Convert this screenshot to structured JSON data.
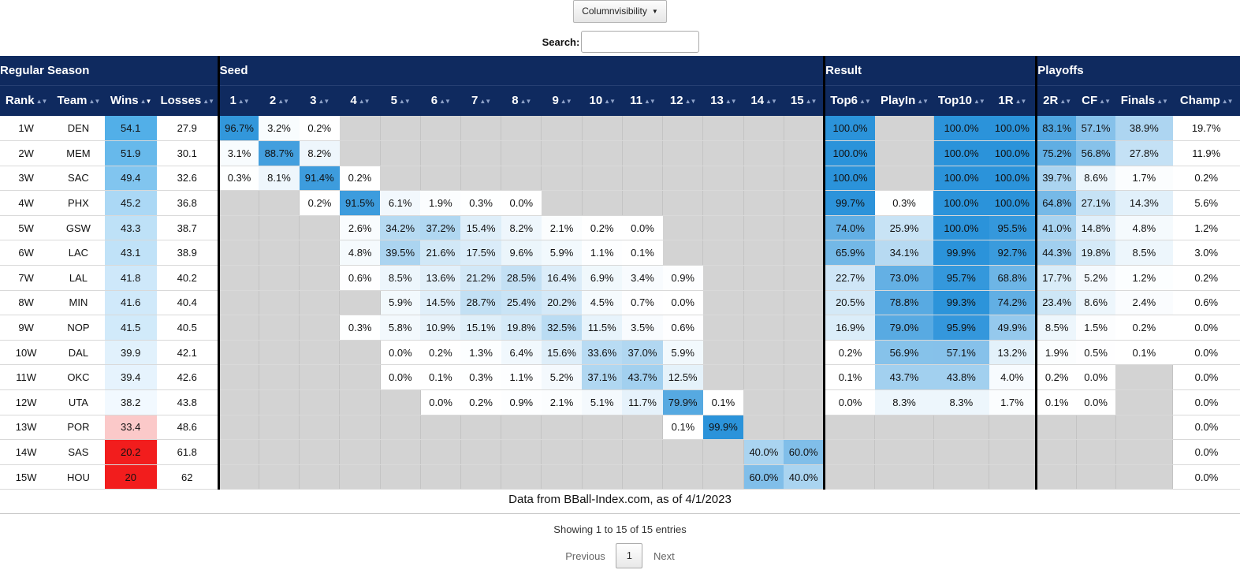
{
  "colvis": {
    "label": "Columnvisibility",
    "caret": "▼"
  },
  "search": {
    "label": "Search:",
    "value": ""
  },
  "groups": [
    "Regular Season",
    "Seed",
    "Result",
    "Playoffs"
  ],
  "columns": [
    "Rank",
    "Team",
    "Wins",
    "Losses",
    "1",
    "2",
    "3",
    "4",
    "5",
    "6",
    "7",
    "8",
    "9",
    "10",
    "11",
    "12",
    "13",
    "14",
    "15",
    "Top6",
    "PlayIn",
    "Top10",
    "1R",
    "2R",
    "CF",
    "Finals",
    "Champ"
  ],
  "rows": [
    [
      "1W",
      "DEN",
      "54.1",
      "27.9",
      "96.7%",
      "3.2%",
      "0.2%",
      "",
      "",
      "",
      "",
      "",
      "",
      "",
      "",
      "",
      "",
      "",
      "",
      "100.0%",
      "",
      "100.0%",
      "100.0%",
      "83.1%",
      "57.1%",
      "38.9%",
      "19.7%"
    ],
    [
      "2W",
      "MEM",
      "51.9",
      "30.1",
      "3.1%",
      "88.7%",
      "8.2%",
      "",
      "",
      "",
      "",
      "",
      "",
      "",
      "",
      "",
      "",
      "",
      "",
      "100.0%",
      "",
      "100.0%",
      "100.0%",
      "75.2%",
      "56.8%",
      "27.8%",
      "11.9%"
    ],
    [
      "3W",
      "SAC",
      "49.4",
      "32.6",
      "0.3%",
      "8.1%",
      "91.4%",
      "0.2%",
      "",
      "",
      "",
      "",
      "",
      "",
      "",
      "",
      "",
      "",
      "",
      "100.0%",
      "",
      "100.0%",
      "100.0%",
      "39.7%",
      "8.6%",
      "1.7%",
      "0.2%"
    ],
    [
      "4W",
      "PHX",
      "45.2",
      "36.8",
      "",
      "",
      "0.2%",
      "91.5%",
      "6.1%",
      "1.9%",
      "0.3%",
      "0.0%",
      "",
      "",
      "",
      "",
      "",
      "",
      "",
      "99.7%",
      "0.3%",
      "100.0%",
      "100.0%",
      "64.8%",
      "27.1%",
      "14.3%",
      "5.6%"
    ],
    [
      "5W",
      "GSW",
      "43.3",
      "38.7",
      "",
      "",
      "",
      "2.6%",
      "34.2%",
      "37.2%",
      "15.4%",
      "8.2%",
      "2.1%",
      "0.2%",
      "0.0%",
      "",
      "",
      "",
      "",
      "74.0%",
      "25.9%",
      "100.0%",
      "95.5%",
      "41.0%",
      "14.8%",
      "4.8%",
      "1.2%"
    ],
    [
      "6W",
      "LAC",
      "43.1",
      "38.9",
      "",
      "",
      "",
      "4.8%",
      "39.5%",
      "21.6%",
      "17.5%",
      "9.6%",
      "5.9%",
      "1.1%",
      "0.1%",
      "",
      "",
      "",
      "",
      "65.9%",
      "34.1%",
      "99.9%",
      "92.7%",
      "44.3%",
      "19.8%",
      "8.5%",
      "3.0%"
    ],
    [
      "7W",
      "LAL",
      "41.8",
      "40.2",
      "",
      "",
      "",
      "0.6%",
      "8.5%",
      "13.6%",
      "21.2%",
      "28.5%",
      "16.4%",
      "6.9%",
      "3.4%",
      "0.9%",
      "",
      "",
      "",
      "22.7%",
      "73.0%",
      "95.7%",
      "68.8%",
      "17.7%",
      "5.2%",
      "1.2%",
      "0.2%"
    ],
    [
      "8W",
      "MIN",
      "41.6",
      "40.4",
      "",
      "",
      "",
      "",
      "5.9%",
      "14.5%",
      "28.7%",
      "25.4%",
      "20.2%",
      "4.5%",
      "0.7%",
      "0.0%",
      "",
      "",
      "",
      "20.5%",
      "78.8%",
      "99.3%",
      "74.2%",
      "23.4%",
      "8.6%",
      "2.4%",
      "0.6%"
    ],
    [
      "9W",
      "NOP",
      "41.5",
      "40.5",
      "",
      "",
      "",
      "0.3%",
      "5.8%",
      "10.9%",
      "15.1%",
      "19.8%",
      "32.5%",
      "11.5%",
      "3.5%",
      "0.6%",
      "",
      "",
      "",
      "16.9%",
      "79.0%",
      "95.9%",
      "49.9%",
      "8.5%",
      "1.5%",
      "0.2%",
      "0.0%"
    ],
    [
      "10W",
      "DAL",
      "39.9",
      "42.1",
      "",
      "",
      "",
      "",
      "0.0%",
      "0.2%",
      "1.3%",
      "6.4%",
      "15.6%",
      "33.6%",
      "37.0%",
      "5.9%",
      "",
      "",
      "",
      "0.2%",
      "56.9%",
      "57.1%",
      "13.2%",
      "1.9%",
      "0.5%",
      "0.1%",
      "0.0%"
    ],
    [
      "11W",
      "OKC",
      "39.4",
      "42.6",
      "",
      "",
      "",
      "",
      "0.0%",
      "0.1%",
      "0.3%",
      "1.1%",
      "5.2%",
      "37.1%",
      "43.7%",
      "12.5%",
      "",
      "",
      "",
      "0.1%",
      "43.7%",
      "43.8%",
      "4.0%",
      "0.2%",
      "0.0%",
      "",
      "0.0%"
    ],
    [
      "12W",
      "UTA",
      "38.2",
      "43.8",
      "",
      "",
      "",
      "",
      "",
      "0.0%",
      "0.2%",
      "0.9%",
      "2.1%",
      "5.1%",
      "11.7%",
      "79.9%",
      "0.1%",
      "",
      "",
      "0.0%",
      "8.3%",
      "8.3%",
      "1.7%",
      "0.1%",
      "0.0%",
      "",
      "0.0%"
    ],
    [
      "13W",
      "POR",
      "33.4",
      "48.6",
      "",
      "",
      "",
      "",
      "",
      "",
      "",
      "",
      "",
      "",
      "",
      "0.1%",
      "99.9%",
      "",
      "",
      "",
      "",
      "",
      "",
      "",
      "",
      "",
      "0.0%"
    ],
    [
      "14W",
      "SAS",
      "20.2",
      "61.8",
      "",
      "",
      "",
      "",
      "",
      "",
      "",
      "",
      "",
      "",
      "",
      "",
      "",
      "40.0%",
      "60.0%",
      "",
      "",
      "",
      "",
      "",
      "",
      "",
      "0.0%"
    ],
    [
      "15W",
      "HOU",
      "20",
      "62",
      "",
      "",
      "",
      "",
      "",
      "",
      "",
      "",
      "",
      "",
      "",
      "",
      "",
      "60.0%",
      "40.0%",
      "",
      "",
      "",
      "",
      "",
      "",
      "",
      "0.0%"
    ]
  ],
  "caption": "Data from BBall-Index.com, as of 4/1/2023",
  "info": "Showing 1 to 15 of 15 entries",
  "paging": {
    "previous": "Previous",
    "page": "1",
    "next": "Next"
  },
  "colors": {
    "header_bg": "#0f2a5f",
    "empty_cell": "#d3d3d3",
    "blue_max": "#2b93da",
    "red_low": "#f21d1d"
  }
}
